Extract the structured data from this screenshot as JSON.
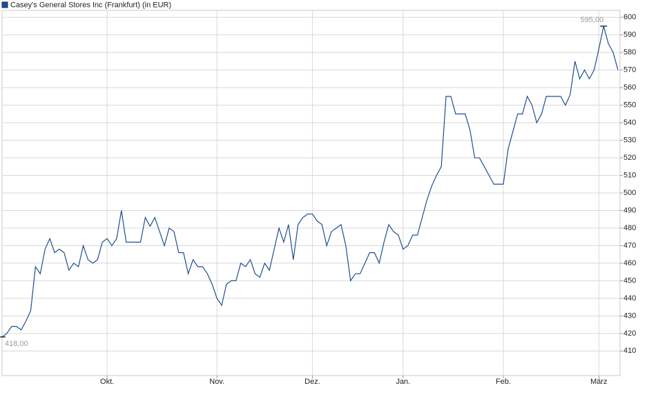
{
  "chart_data": {
    "type": "line",
    "title": "Casey's General Stores Inc (Frankfurt) (in EUR)",
    "categories": [
      null,
      null,
      null,
      null,
      null,
      null,
      null,
      null,
      null,
      null,
      null,
      null,
      null,
      null,
      null,
      null,
      null,
      null,
      null,
      null,
      null,
      null,
      "Okt.",
      null,
      null,
      null,
      null,
      null,
      null,
      null,
      null,
      null,
      null,
      null,
      null,
      null,
      null,
      null,
      null,
      null,
      null,
      null,
      null,
      null,
      null,
      "Nov.",
      null,
      null,
      null,
      null,
      null,
      null,
      null,
      null,
      null,
      null,
      null,
      null,
      null,
      null,
      null,
      null,
      null,
      null,
      null,
      "Dez.",
      null,
      null,
      null,
      null,
      null,
      null,
      null,
      null,
      null,
      null,
      null,
      null,
      null,
      null,
      null,
      null,
      null,
      null,
      "Jan.",
      null,
      null,
      null,
      null,
      null,
      null,
      null,
      null,
      null,
      null,
      null,
      null,
      null,
      null,
      null,
      null,
      null,
      null,
      null,
      null,
      "Feb.",
      null,
      null,
      null,
      null,
      null,
      null,
      null,
      null,
      null,
      null,
      null,
      null,
      null,
      null,
      null,
      null,
      null,
      null,
      null,
      "März",
      null,
      null,
      null,
      null
    ],
    "series": [
      {
        "name": "Casey's General Stores Inc (Frankfurt) (in EUR)",
        "color": "#1c4f8f",
        "values": [
          418,
          420,
          424,
          424,
          422,
          427,
          433,
          458,
          454,
          468,
          474,
          466,
          468,
          466,
          456,
          460,
          458,
          470,
          462,
          460,
          462,
          472,
          474,
          470,
          474,
          490,
          472,
          472,
          472,
          472,
          486,
          481,
          486,
          478,
          470,
          480,
          478,
          466,
          466,
          454,
          462,
          458,
          458,
          454,
          448,
          440,
          436,
          448,
          450,
          450,
          460,
          458,
          462,
          454,
          452,
          460,
          456,
          468,
          480,
          472,
          482,
          462,
          482,
          486,
          488,
          488,
          484,
          482,
          470,
          478,
          480,
          482,
          470,
          450,
          454,
          454,
          460,
          466,
          466,
          460,
          472,
          482,
          478,
          476,
          468,
          470,
          476,
          476,
          486,
          496,
          504,
          510,
          515,
          555,
          555,
          545,
          545,
          545,
          536,
          520,
          520,
          515,
          510,
          505,
          505,
          505,
          525,
          535,
          545,
          545,
          555,
          550,
          540,
          545,
          555,
          555,
          555,
          555,
          550,
          556,
          575,
          565,
          570,
          565,
          570,
          582,
          595,
          585,
          580,
          570
        ]
      }
    ],
    "annotations": [
      "418,00",
      "595,00"
    ],
    "ylim": [
      396,
      604
    ],
    "yticks": [
      410,
      420,
      430,
      440,
      450,
      460,
      470,
      480,
      490,
      500,
      510,
      520,
      530,
      540,
      550,
      560,
      570,
      580,
      590,
      600
    ],
    "grid": true
  }
}
